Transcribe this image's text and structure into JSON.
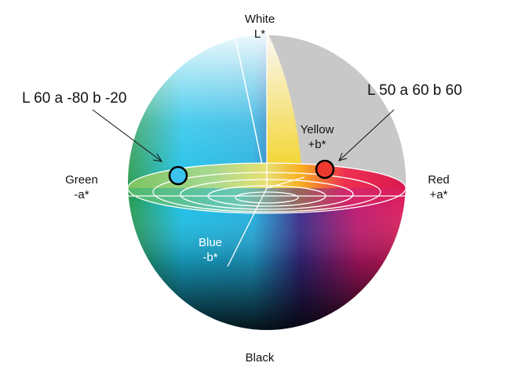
{
  "axes": {
    "white": {
      "name": "White",
      "axis": "L*"
    },
    "black": {
      "name": "Black"
    },
    "green": {
      "name": "Green",
      "axis": "-a*"
    },
    "red": {
      "name": "Red",
      "axis": "+a*"
    },
    "yellow": {
      "name": "Yellow",
      "axis": "+b*"
    },
    "blue": {
      "name": "Blue",
      "axis": "-b*"
    }
  },
  "annotations": [
    {
      "text": "L 60  a -80  b -20",
      "marker_color": "#3cc4ef"
    },
    {
      "text": "L 50  a 60  b 60",
      "marker_color": "#ee3a2e"
    }
  ]
}
